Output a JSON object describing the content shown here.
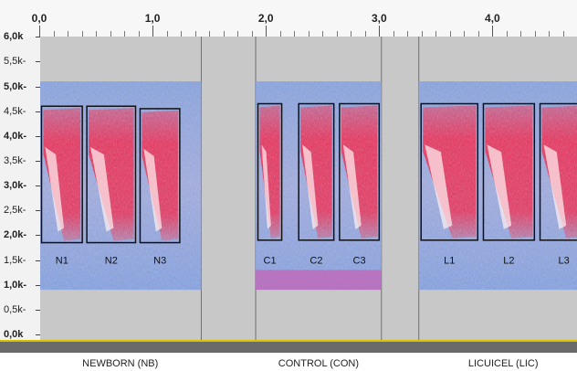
{
  "ruler": {
    "ticks": [
      {
        "label": "0,0",
        "t": 0.0
      },
      {
        "label": "1,0",
        "t": 1.0
      },
      {
        "label": "2,0",
        "t": 2.0
      },
      {
        "label": "3,0",
        "t": 3.0
      },
      {
        "label": "4,0",
        "t": 4.0
      }
    ]
  },
  "frequency_axis": {
    "ticks": [
      {
        "label": "6,0k",
        "value": 6.0,
        "strong": true
      },
      {
        "label": "5,5k-",
        "value": 5.5
      },
      {
        "label": "5,0k-",
        "value": 5.0,
        "strong": true
      },
      {
        "label": "4,5k-",
        "value": 4.5
      },
      {
        "label": "4,0k-",
        "value": 4.0,
        "strong": true
      },
      {
        "label": "3,5k-",
        "value": 3.5
      },
      {
        "label": "3,0k-",
        "value": 3.0,
        "strong": true
      },
      {
        "label": "2,5k-",
        "value": 2.5
      },
      {
        "label": "2,0k-",
        "value": 2.0,
        "strong": true
      },
      {
        "label": "1,5k-",
        "value": 1.5
      },
      {
        "label": "1,0k-",
        "value": 1.0,
        "strong": true
      },
      {
        "label": "0,5k-",
        "value": 0.5
      },
      {
        "label": "0,0k",
        "value": 0.0,
        "strong": true
      }
    ]
  },
  "segments": [
    {
      "label": "NEWBORN (NB)",
      "start": 0.0,
      "end": 1.43,
      "calls": [
        {
          "label": "N1",
          "start": 0.02,
          "end": 0.38,
          "fmin": 1.8,
          "fmax": 4.65
        },
        {
          "label": "N2",
          "start": 0.42,
          "end": 0.85,
          "fmin": 1.8,
          "fmax": 4.65
        },
        {
          "label": "N3",
          "start": 0.89,
          "end": 1.24,
          "fmin": 1.8,
          "fmax": 4.6
        }
      ]
    },
    {
      "label": "CONTROL (CON)",
      "start": 1.91,
      "end": 3.02,
      "calls": [
        {
          "label": "C1",
          "start": 1.93,
          "end": 2.14,
          "fmin": 1.85,
          "fmax": 4.7
        },
        {
          "label": "C2",
          "start": 2.29,
          "end": 2.6,
          "fmin": 1.85,
          "fmax": 4.7
        },
        {
          "label": "C3",
          "start": 2.65,
          "end": 3.0,
          "fmin": 1.85,
          "fmax": 4.7
        }
      ]
    },
    {
      "label": "LICUICEL (LIC)",
      "start": 3.35,
      "end": 4.84,
      "calls": [
        {
          "label": "L1",
          "start": 3.37,
          "end": 3.87,
          "fmin": 1.85,
          "fmax": 4.7
        },
        {
          "label": "L2",
          "start": 3.92,
          "end": 4.37,
          "fmin": 1.85,
          "fmax": 4.7
        },
        {
          "label": "L3",
          "start": 4.42,
          "end": 4.84,
          "fmin": 1.85,
          "fmax": 4.7
        }
      ]
    }
  ],
  "colors": {
    "background": "#c8c8c8",
    "noise": "#7f9fe6",
    "energy": "#ee2a56",
    "peak": "#fff2f2",
    "box": "#111111",
    "track_edge": "#d9c300"
  }
}
